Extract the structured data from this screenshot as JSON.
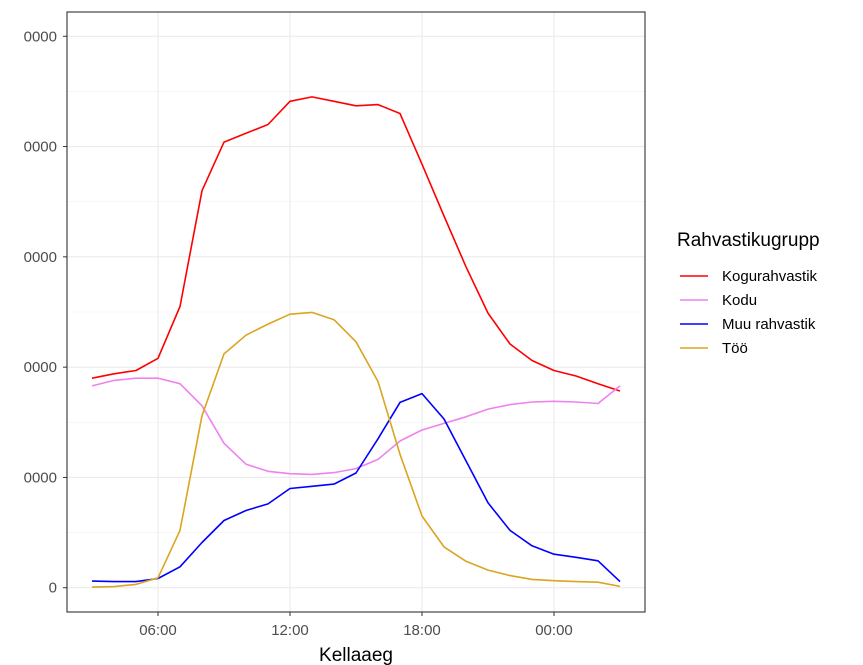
{
  "chart_data": {
    "type": "line",
    "xlabel": "Kellaaeg",
    "ylabel": "",
    "x": [
      "03:00",
      "04:00",
      "05:00",
      "06:00",
      "07:00",
      "08:00",
      "09:00",
      "10:00",
      "11:00",
      "12:00",
      "13:00",
      "14:00",
      "15:00",
      "16:00",
      "17:00",
      "18:00",
      "19:00",
      "20:00",
      "21:00",
      "22:00",
      "23:00",
      "00:00",
      "01:00",
      "02:00",
      "03:00"
    ],
    "x_tick_labels": [
      "06:00",
      "12:00",
      "18:00",
      "00:00"
    ],
    "y_tick_labels": [
      "0000",
      "0000",
      "0000",
      "0000",
      "0000",
      "0"
    ],
    "y_ticks": [
      25000,
      20000,
      15000,
      10000,
      5000,
      0
    ],
    "ylim": [
      -1100,
      26100
    ],
    "grid": true,
    "legend": {
      "title": "Rahvastikugrupp",
      "position": "right"
    },
    "series": [
      {
        "name": "Kogurahvastik",
        "color": "#ff0000",
        "values": [
          9500,
          9700,
          9850,
          10400,
          12750,
          18000,
          20200,
          20600,
          21000,
          22050,
          22250,
          22050,
          21850,
          21900,
          21500,
          19200,
          16850,
          14550,
          12450,
          11050,
          10300,
          9850,
          9600,
          9250,
          8920
        ]
      },
      {
        "name": "Kodu",
        "color": "#ee82ee",
        "values": [
          9150,
          9400,
          9500,
          9500,
          9250,
          8250,
          6550,
          5600,
          5280,
          5170,
          5140,
          5220,
          5400,
          5820,
          6650,
          7150,
          7450,
          7750,
          8100,
          8300,
          8420,
          8450,
          8420,
          8350,
          9150
        ]
      },
      {
        "name": "Muu rahvastik",
        "color": "#0000ff",
        "values": [
          300,
          280,
          280,
          420,
          950,
          2050,
          3050,
          3500,
          3800,
          4500,
          4600,
          4700,
          5200,
          6750,
          8400,
          8800,
          7650,
          5750,
          3850,
          2600,
          1900,
          1520,
          1380,
          1220,
          280
        ]
      },
      {
        "name": "Töö",
        "color": "#daa520",
        "values": [
          30,
          50,
          150,
          450,
          2600,
          7800,
          10600,
          11450,
          11950,
          12400,
          12480,
          12150,
          11150,
          9350,
          6050,
          3250,
          1850,
          1200,
          800,
          550,
          380,
          320,
          280,
          250,
          60
        ]
      }
    ]
  }
}
